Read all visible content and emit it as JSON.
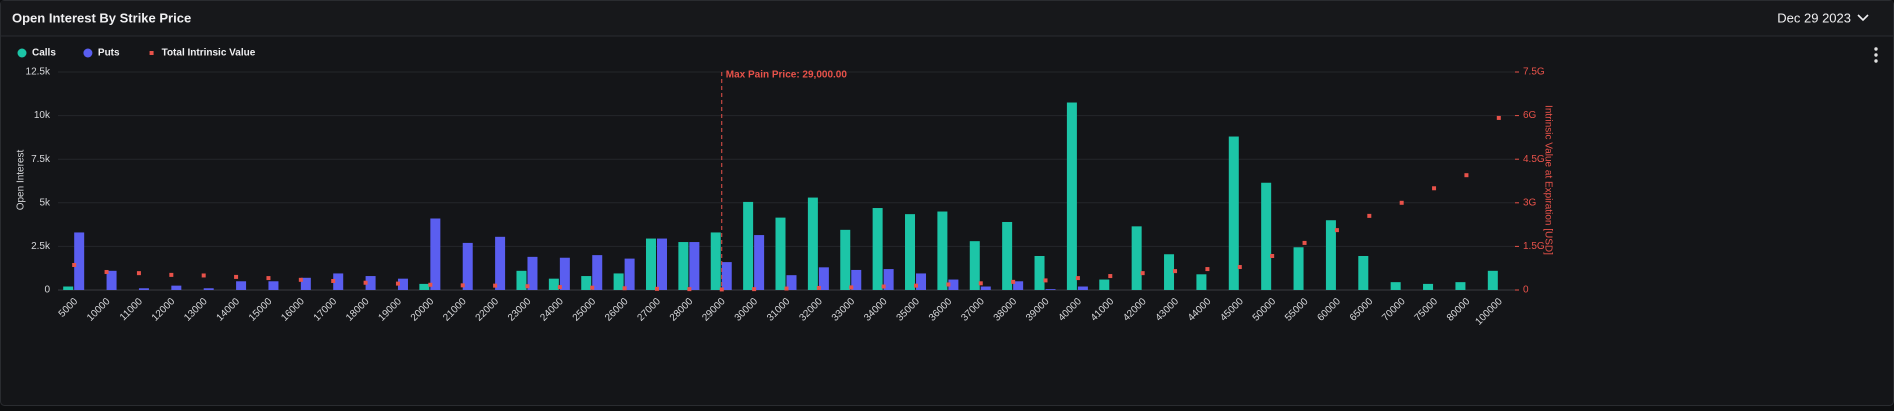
{
  "header": {
    "title": "Open Interest By Strike Price",
    "date": "Dec 29 2023"
  },
  "chart_data": {
    "type": "bar",
    "y_label": "Open Interest",
    "y2_label": "Intrinsic Value at Expiration [USD]",
    "categories": [
      "5000",
      "10000",
      "11000",
      "12000",
      "13000",
      "14000",
      "15000",
      "16000",
      "17000",
      "18000",
      "19000",
      "20000",
      "21000",
      "22000",
      "23000",
      "24000",
      "25000",
      "26000",
      "27000",
      "28000",
      "29000",
      "30000",
      "31000",
      "32000",
      "33000",
      "34000",
      "35000",
      "36000",
      "37000",
      "38000",
      "39000",
      "40000",
      "41000",
      "42000",
      "43000",
      "44000",
      "45000",
      "50000",
      "55000",
      "60000",
      "65000",
      "70000",
      "75000",
      "80000",
      "100000"
    ],
    "series": [
      {
        "name": "Calls",
        "color": "#1cc5a7",
        "kind": "bar",
        "values": [
          0.2,
          0,
          0,
          0,
          0,
          0,
          0,
          0,
          0,
          0,
          0,
          0.35,
          0,
          0,
          1.1,
          0.65,
          0.8,
          0.95,
          2.95,
          2.75,
          3.3,
          5.05,
          4.15,
          5.3,
          3.45,
          4.7,
          4.35,
          4.5,
          2.8,
          3.9,
          1.95,
          10.75,
          0.6,
          3.65,
          2.05,
          0.9,
          8.8,
          6.15,
          2.45,
          4.0,
          1.95,
          0.45,
          0.35,
          0.45,
          1.1
        ]
      },
      {
        "name": "Puts",
        "color": "#5a5ef0",
        "kind": "bar",
        "values": [
          3.3,
          1.1,
          0.1,
          0.25,
          0.1,
          0.5,
          0.5,
          0.7,
          0.95,
          0.8,
          0.65,
          4.1,
          2.7,
          3.05,
          1.9,
          1.85,
          2.0,
          1.8,
          2.95,
          2.75,
          1.6,
          3.15,
          0.85,
          1.3,
          1.15,
          1.2,
          0.95,
          0.6,
          0.2,
          0.5,
          0.05,
          0.2,
          0,
          0,
          0,
          0,
          0,
          0,
          0,
          0,
          0,
          0,
          0,
          0,
          0
        ]
      },
      {
        "name": "Total Intrinsic Value",
        "color": "#e8524a",
        "kind": "dot",
        "axis": "y2",
        "values": [
          0.86,
          0.62,
          0.58,
          0.52,
          0.5,
          0.45,
          0.41,
          0.35,
          0.31,
          0.25,
          0.22,
          0.18,
          0.16,
          0.15,
          0.13,
          0.1,
          0.08,
          0.06,
          0.04,
          0.03,
          0.02,
          0.03,
          0.05,
          0.07,
          0.09,
          0.12,
          0.15,
          0.19,
          0.23,
          0.28,
          0.33,
          0.41,
          0.48,
          0.58,
          0.65,
          0.72,
          0.79,
          1.17,
          1.62,
          2.06,
          2.55,
          3.0,
          3.5,
          3.95,
          5.92
        ]
      }
    ],
    "ylim": [
      0,
      12.5
    ],
    "yticks": [
      0,
      {
        "value": 2.5,
        "label": "2.5k"
      },
      {
        "value": 5,
        "label": "5k"
      },
      {
        "value": 7.5,
        "label": "7.5k"
      },
      {
        "value": 10,
        "label": "10k"
      },
      {
        "value": 12.5,
        "label": "12.5k"
      }
    ],
    "y2lim": [
      0,
      7.5
    ],
    "y2ticks": [
      0,
      {
        "value": 1.5,
        "label": "1.5G"
      },
      {
        "value": 3,
        "label": "3G"
      },
      {
        "value": 4.5,
        "label": "4.5G"
      },
      {
        "value": 6,
        "label": "6G"
      },
      {
        "value": 7.5,
        "label": "7.5G"
      }
    ],
    "grid": true,
    "annotation": {
      "text": "Max Pain Price: 29,000.00",
      "x": 29000,
      "color": "#e8524a"
    }
  }
}
